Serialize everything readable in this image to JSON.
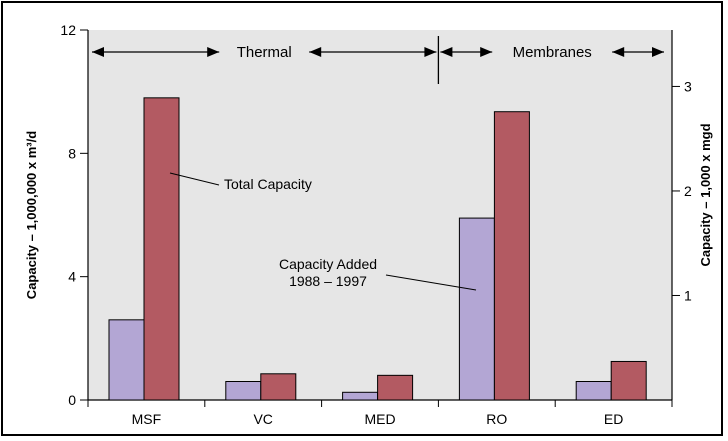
{
  "chart_data": {
    "type": "bar",
    "categories": [
      "MSF",
      "VC",
      "MED",
      "RO",
      "ED"
    ],
    "series": [
      {
        "name": "Capacity Added 1988 – 1997",
        "values": [
          2.6,
          0.6,
          0.25,
          5.9,
          0.6
        ],
        "color": "#b3a6d4"
      },
      {
        "name": "Total Capacity",
        "values": [
          9.8,
          0.85,
          0.8,
          9.35,
          1.25
        ],
        "color": "#b35a62"
      }
    ],
    "ylim": [
      0,
      12
    ],
    "yticks": [
      0,
      4,
      8,
      12
    ],
    "y2lim": [
      0,
      3.54
    ],
    "y2ticks": [
      1,
      2,
      3
    ],
    "ylabel": "Capacity – 1,000,000 x m³/d",
    "y2label": "Capacity – 1,000 x mgd",
    "plot_background": "#e6e6e6",
    "annotations": {
      "total": "Total Capacity",
      "added_line1": "Capacity Added",
      "added_line2": "1988 – 1997"
    },
    "groups": [
      {
        "label": "Thermal",
        "categories": [
          "MSF",
          "VC",
          "MED"
        ]
      },
      {
        "label": "Membranes",
        "categories": [
          "RO",
          "ED"
        ]
      }
    ]
  }
}
